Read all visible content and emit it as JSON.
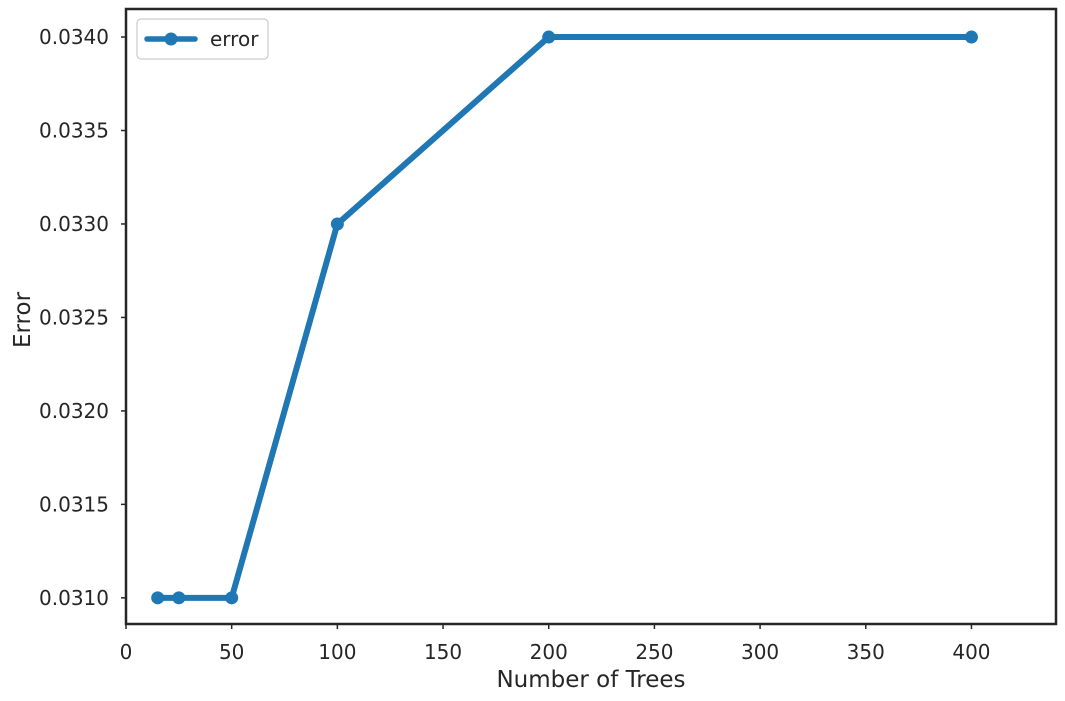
{
  "chart_data": {
    "type": "line",
    "title": "",
    "xlabel": "Number of Trees",
    "ylabel": "Error",
    "xlim": [
      0,
      440
    ],
    "ylim": [
      0.03086,
      0.03415
    ],
    "x_ticks": [
      0,
      50,
      100,
      150,
      200,
      250,
      300,
      350,
      400
    ],
    "y_ticks": [
      0.031,
      0.0315,
      0.032,
      0.0325,
      0.033,
      0.0335,
      0.034
    ],
    "y_tick_labels": [
      "0.0310",
      "0.0315",
      "0.0320",
      "0.0325",
      "0.0330",
      "0.0335",
      "0.0340"
    ],
    "grid": false,
    "legend_position": "top-left",
    "series": [
      {
        "name": "error",
        "color": "#1f77b4",
        "marker": "circle",
        "x": [
          15,
          25,
          50,
          100,
          200,
          400
        ],
        "y": [
          0.031,
          0.031,
          0.031,
          0.033,
          0.034,
          0.034
        ]
      }
    ]
  }
}
